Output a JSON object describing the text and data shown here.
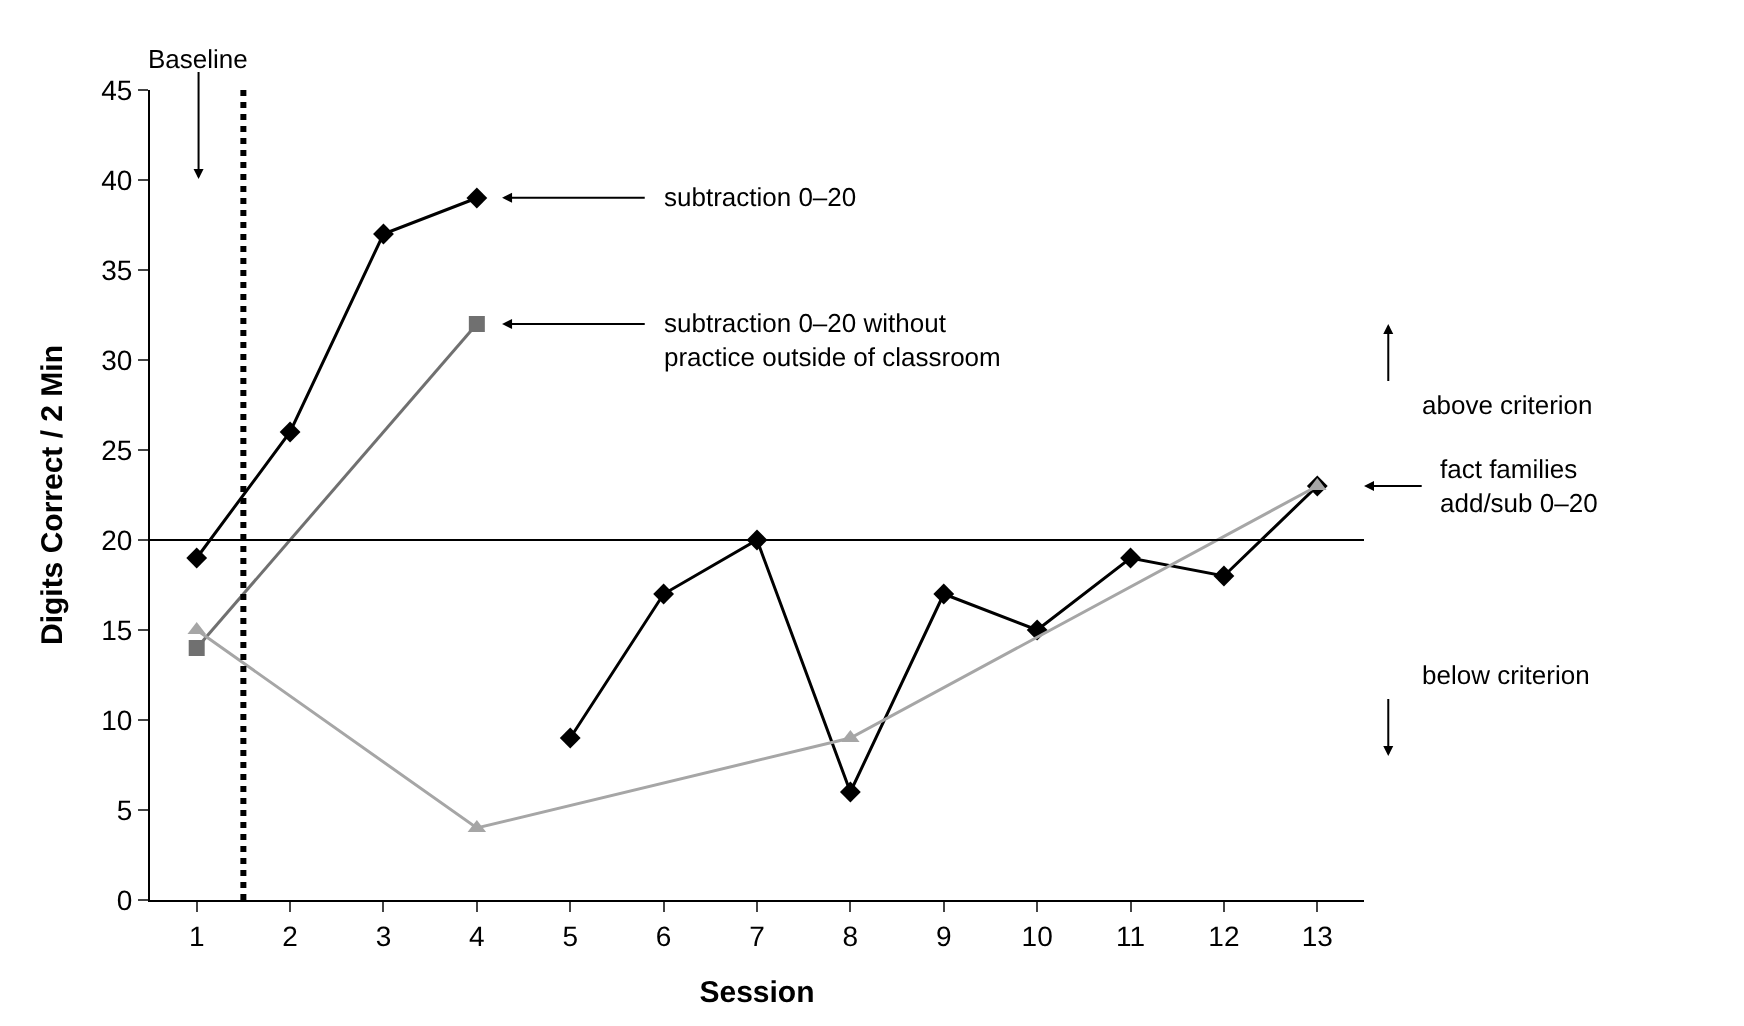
{
  "chart_data": {
    "type": "line",
    "xlabel": "Session",
    "ylabel": "Digits Correct / 2 Min",
    "xlim": [
      0.5,
      13.5
    ],
    "xticks": [
      1,
      2,
      3,
      4,
      5,
      6,
      7,
      8,
      9,
      10,
      11,
      12,
      13
    ],
    "ylim": [
      0,
      45
    ],
    "yticks": [
      0,
      5,
      10,
      15,
      20,
      25,
      30,
      35,
      40,
      45
    ],
    "series": [
      {
        "x": [
          1,
          2,
          3,
          4
        ],
        "values": [
          19,
          26,
          37,
          39
        ],
        "color": "#000000",
        "marker": "diamond"
      },
      {
        "x": [
          5,
          6,
          7,
          8,
          9,
          10,
          11,
          12,
          13
        ],
        "values": [
          9,
          17,
          20,
          6,
          17,
          15,
          19,
          18,
          23
        ],
        "color": "#000000",
        "marker": "diamond"
      },
      {
        "x": [
          1,
          4
        ],
        "values": [
          14,
          32
        ],
        "color": "#707070",
        "marker": "square"
      },
      {
        "x": [
          1,
          4,
          8,
          13
        ],
        "values": [
          15,
          4,
          9,
          23
        ],
        "color": "#a6a6a6",
        "marker": "triangle"
      }
    ],
    "ref_lines": [
      {
        "axis": "x",
        "value": 1.5,
        "color": "#000000",
        "line_style": "dotted"
      },
      {
        "axis": "y",
        "value": 20,
        "color": "#000000",
        "line_style": "solid"
      }
    ],
    "annotations": [
      "Baseline",
      "subtraction 0–20",
      "subtraction 0–20 without practice outside of classroom",
      "fact families add/sub 0–20",
      "above criterion",
      "below criterion"
    ]
  }
}
